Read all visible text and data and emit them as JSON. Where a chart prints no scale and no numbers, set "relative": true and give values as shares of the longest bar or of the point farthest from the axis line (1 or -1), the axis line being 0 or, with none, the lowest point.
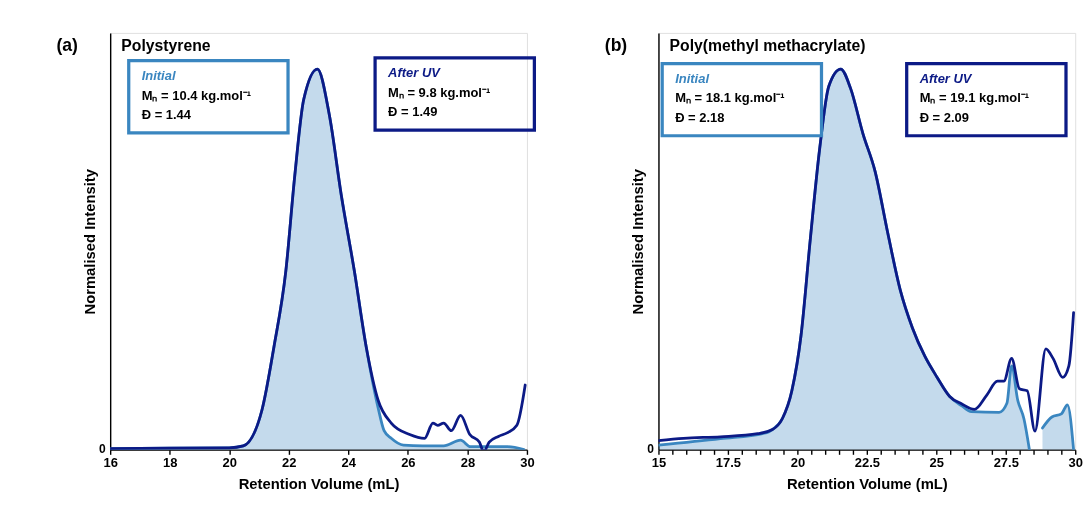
{
  "chart_data": [
    {
      "type": "line",
      "title": "Polystyrene",
      "xlabel": "Retention Volume (mL)",
      "ylabel": "Normalised Intensity",
      "relative": true,
      "legend": "top",
      "grid": false,
      "marker": "none",
      "line_style": "solid",
      "xlim": [
        16,
        30
      ],
      "xticks": [
        16,
        18,
        20,
        22,
        24,
        26,
        28,
        30
      ],
      "annotations": [
        "(a)",
        "0",
        "Mₙ = 10.4 kg.mol⁻¹",
        "Đ = 1.44",
        "Mₙ = 9.8 kg.mol⁻¹",
        "Đ = 1.49"
      ],
      "series": [
        {
          "name": "Initial",
          "type": "area",
          "color": "#3a86c0",
          "x": [
            16,
            18,
            20,
            20.47,
            21.1,
            21.5,
            21.9,
            22.2,
            22.5,
            22.96,
            23.36,
            23.76,
            24.2,
            24.6,
            25.0,
            25.2,
            25.44,
            25.85,
            26.5,
            27.2,
            27.77,
            28.1,
            29.35,
            29.9
          ],
          "values": [
            0.003,
            0.004,
            0.005,
            0.01,
            0.105,
            0.27,
            0.47,
            0.72,
            0.92,
            1.0,
            0.88,
            0.67,
            0.47,
            0.27,
            0.11,
            0.05,
            0.03,
            0.012,
            0.01,
            0.01,
            0.025,
            0.008,
            0.008,
            0.0
          ]
        },
        {
          "name": "After UV",
          "type": "line",
          "color": "#0c1a86",
          "x": [
            16,
            18,
            20,
            20.47,
            21.1,
            21.5,
            21.9,
            22.2,
            22.5,
            22.96,
            23.36,
            23.76,
            24.2,
            24.6,
            25.0,
            25.44,
            26.06,
            26.56,
            26.84,
            27.0,
            27.2,
            27.46,
            27.77,
            28.08,
            28.4,
            28.55,
            28.73,
            29.04,
            29.35,
            29.66,
            29.94
          ],
          "values": [
            0.003,
            0.004,
            0.005,
            0.01,
            0.105,
            0.27,
            0.47,
            0.72,
            0.92,
            1.0,
            0.88,
            0.67,
            0.47,
            0.27,
            0.13,
            0.07,
            0.04,
            0.03,
            0.07,
            0.064,
            0.07,
            0.05,
            0.09,
            0.04,
            0.02,
            -0.005,
            0.02,
            0.035,
            0.045,
            0.064,
            0.17
          ]
        }
      ]
    },
    {
      "type": "line",
      "title": "Poly(methyl methacrylate)",
      "xlabel": "Retention Volume (mL)",
      "ylabel": "Normalised Intensity",
      "relative": true,
      "legend": "top",
      "grid": false,
      "marker": "none",
      "line_style": "solid",
      "xlim": [
        15,
        30
      ],
      "xticks": [
        15,
        {
          "value": 15.5,
          "label": null
        },
        {
          "value": 16,
          "label": null
        },
        {
          "value": 16.5,
          "label": null
        },
        {
          "value": 17,
          "label": null
        },
        17.5,
        {
          "value": 18,
          "label": null
        },
        {
          "value": 18.5,
          "label": null
        },
        {
          "value": 19,
          "label": null
        },
        {
          "value": 19.5,
          "label": null
        },
        20,
        {
          "value": 20.5,
          "label": null
        },
        {
          "value": 21,
          "label": null
        },
        {
          "value": 21.5,
          "label": null
        },
        {
          "value": 22,
          "label": null
        },
        22.5,
        {
          "value": 23,
          "label": null
        },
        {
          "value": 23.5,
          "label": null
        },
        {
          "value": 24,
          "label": null
        },
        {
          "value": 24.5,
          "label": null
        },
        25,
        {
          "value": 25.5,
          "label": null
        },
        {
          "value": 26,
          "label": null
        },
        {
          "value": 26.5,
          "label": null
        },
        {
          "value": 27,
          "label": null
        },
        27.5,
        {
          "value": 28,
          "label": null
        },
        {
          "value": 28.5,
          "label": null
        },
        {
          "value": 29,
          "label": null
        },
        {
          "value": 29.5,
          "label": null
        },
        30
      ],
      "annotations": [
        "(b)",
        "0",
        "Mₙ = 18.1 kg.mol⁻¹",
        "Đ = 2.18",
        "Mₙ = 19.1 kg.mol⁻¹",
        "Đ = 2.09"
      ],
      "series": [
        {
          "name": "Initial",
          "type": "area",
          "color": "#3a86c0",
          "x": [
            15,
            17.23,
            18.9,
            19.1,
            19.46,
            19.8,
            20.13,
            20.46,
            20.8,
            21.13,
            21.56,
            21.91,
            22.36,
            22.8,
            23.25,
            23.7,
            24.14,
            24.59,
            25.03,
            25.48,
            25.92,
            26.26,
            27.26,
            27.54,
            27.71,
            27.93,
            28.15,
            28.35,
            28.5,
            28.82,
            29.16,
            29.5,
            29.72,
            29.94
          ],
          "values": [
            0.012,
            0.029,
            0.045,
            0.053,
            0.082,
            0.155,
            0.3,
            0.55,
            0.79,
            0.955,
            1.0,
            0.95,
            0.83,
            0.73,
            0.57,
            0.42,
            0.32,
            0.245,
            0.19,
            0.14,
            0.115,
            0.1,
            0.098,
            0.122,
            0.22,
            0.13,
            0.082,
            0.0,
            null,
            0.057,
            0.086,
            0.094,
            0.118,
            0.0
          ]
        },
        {
          "name": "After UV",
          "type": "line",
          "color": "#0c1a86",
          "x": [
            15,
            15.9,
            17.23,
            18.57,
            19.1,
            19.46,
            19.8,
            20.13,
            20.46,
            20.8,
            21.13,
            21.56,
            21.91,
            22.36,
            22.8,
            23.25,
            23.7,
            24.14,
            24.59,
            25.03,
            25.48,
            25.92,
            26.37,
            26.81,
            27.2,
            27.43,
            27.71,
            27.99,
            28.27,
            28.55,
            28.94,
            29.2,
            29.55,
            29.77,
            29.94
          ],
          "values": [
            0.024,
            0.03,
            0.034,
            0.042,
            0.053,
            0.082,
            0.155,
            0.3,
            0.55,
            0.79,
            0.955,
            1.0,
            0.95,
            0.83,
            0.73,
            0.57,
            0.42,
            0.32,
            0.245,
            0.19,
            0.14,
            0.12,
            0.106,
            0.143,
            0.18,
            0.18,
            0.24,
            0.16,
            0.155,
            0.049,
            0.265,
            0.24,
            0.19,
            0.22,
            0.36
          ]
        }
      ]
    }
  ]
}
